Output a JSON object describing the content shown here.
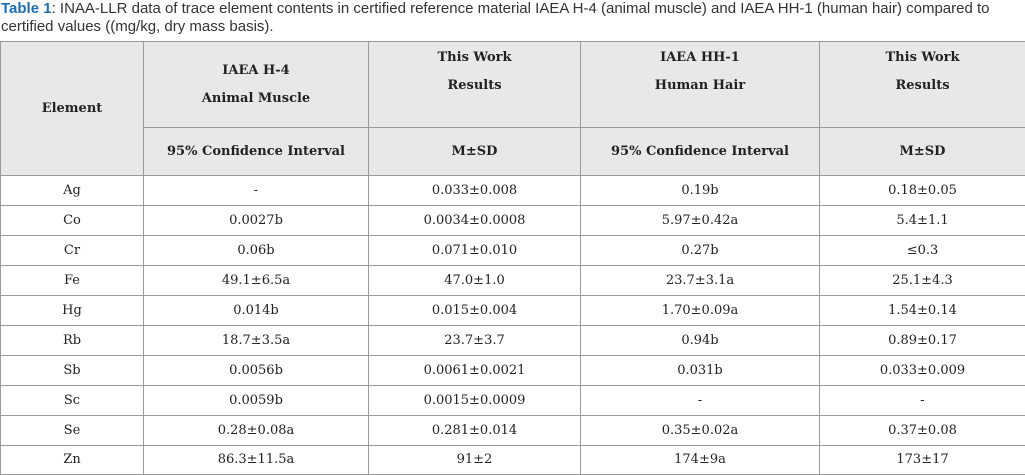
{
  "caption": {
    "label": "Table 1",
    "text": ": INAA-LLR data of trace element contents in certified reference material IAEA H-4 (animal muscle) and IAEA HH-1 (human hair) compared to certified values ((mg/kg, dry mass basis)."
  },
  "header": {
    "element": "Element",
    "h4_line1": "IAEA H-4",
    "h4_line2": "Animal Muscle",
    "work1_line1": "This Work",
    "work1_line2": "Results",
    "hh1_line1": "IAEA HH-1",
    "hh1_line2": "Human Hair",
    "work2_line1": "This Work",
    "work2_line2": "Results",
    "ci1": "95% Confidence Interval",
    "msd1": "M±SD",
    "ci2": "95% Confidence Interval",
    "msd2": "M±SD"
  },
  "rows": [
    [
      "Ag",
      "-",
      "0.033±0.008",
      "0.19b",
      "0.18±0.05"
    ],
    [
      "Co",
      "0.0027b",
      "0.0034±0.0008",
      "5.97±0.42a",
      "5.4±1.1"
    ],
    [
      "Cr",
      "0.06b",
      "0.071±0.010",
      "0.27b",
      "≤0.3"
    ],
    [
      "Fe",
      "49.1±6.5a",
      "47.0±1.0",
      "23.7±3.1a",
      "25.1±4.3"
    ],
    [
      "Hg",
      "0.014b",
      "0.015±0.004",
      "1.70±0.09a",
      "1.54±0.14"
    ],
    [
      "Rb",
      "18.7±3.5a",
      "23.7±3.7",
      "0.94b",
      "0.89±0.17"
    ],
    [
      "Sb",
      "0.0056b",
      "0.0061±0.0021",
      "0.031b",
      "0.033±0.009"
    ],
    [
      "Sc",
      "0.0059b",
      "0.0015±0.0009",
      "-",
      "-"
    ],
    [
      "Se",
      "0.28±0.08a",
      "0.281±0.014",
      "0.35±0.02a",
      "0.37±0.08"
    ],
    [
      "Zn",
      "86.3±11.5a",
      "91±2",
      "174±9a",
      "173±17"
    ]
  ]
}
